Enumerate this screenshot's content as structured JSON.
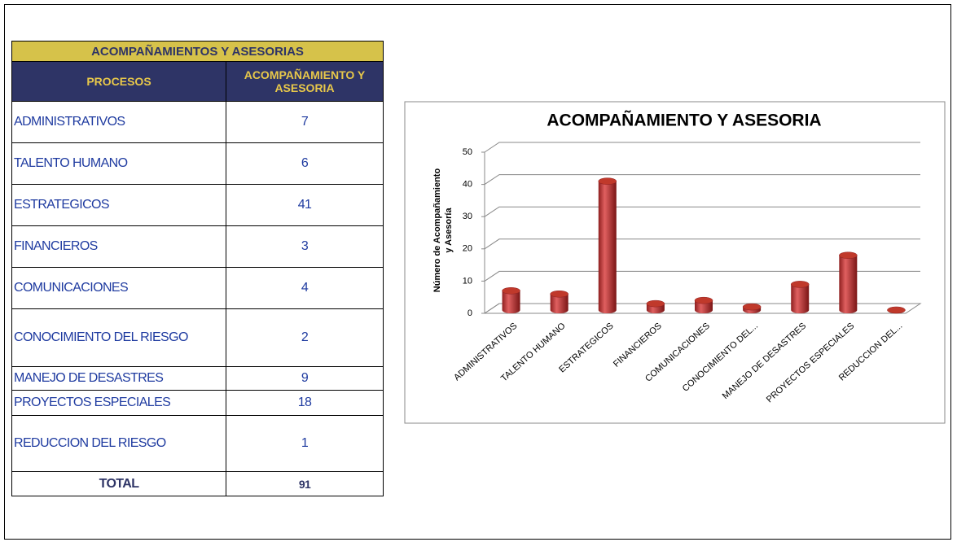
{
  "table": {
    "title": "ACOMPAÑAMIENTOS Y ASESORIAS",
    "header": [
      "PROCESOS",
      "ACOMPAÑAMIENTO Y ASESORIA"
    ],
    "rows": [
      [
        "ADMINISTRATIVOS",
        7
      ],
      [
        "TALENTO HUMANO",
        6
      ],
      [
        "ESTRATEGICOS",
        41
      ],
      [
        "FINANCIEROS",
        3
      ],
      [
        "COMUNICACIONES",
        4
      ],
      [
        "CONOCIMIENTO DEL RIESGO",
        2
      ],
      [
        "MANEJO DE DESASTRES",
        9
      ],
      [
        "PROYECTOS ESPECIALES",
        18
      ],
      [
        "REDUCCION DEL RIESGO",
        1
      ]
    ],
    "total": [
      "TOTAL",
      91
    ]
  },
  "chart_data": {
    "type": "bar",
    "title": "ACOMPAÑAMIENTO Y ASESORIA",
    "y_label": [
      "Número de Acompañamiento",
      "y Asesoría"
    ],
    "categories": [
      "ADMINISTRATIVOS",
      "TALENTO HUMANO",
      "ESTRATEGICOS",
      "FINANCIEROS",
      "COMUNICACIONES",
      "CONOCIMIENTO DEL...",
      "MANEJO DE DESASTRES",
      "PROYECTOS ESPECIALES",
      "REDUCCION DEL..."
    ],
    "values": [
      7,
      6,
      41,
      3,
      4,
      2,
      9,
      18,
      1
    ],
    "ylim": [
      0,
      50
    ],
    "yticks": [
      0,
      10,
      20,
      30,
      40,
      50
    ],
    "color": "#c0392b",
    "grid": true
  }
}
